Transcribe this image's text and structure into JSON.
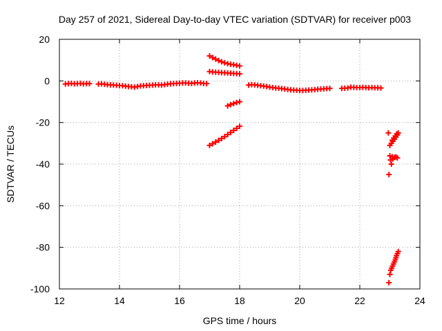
{
  "chart_data": {
    "type": "scatter",
    "title": "Day 257 of 2021, Sidereal Day-to-day VTEC variation (SDTVAR) for receiver p003",
    "xlabel": "GPS time / hours",
    "ylabel": "SDTVAR / TECUs",
    "xlim": [
      12,
      24
    ],
    "ylim": [
      -100,
      20
    ],
    "xticks": [
      12,
      14,
      16,
      18,
      20,
      22,
      24
    ],
    "yticks": [
      -100,
      -80,
      -60,
      -40,
      -20,
      0,
      20
    ],
    "xtick_labels": [
      "12",
      "14",
      "16",
      "18",
      "20",
      "22",
      "24"
    ],
    "ytick_labels": [
      "-100",
      "-80",
      "-60",
      "-40",
      "-20",
      "0",
      "20"
    ],
    "grid": true,
    "legend": "none",
    "marker": "plus",
    "color": "#ff0000",
    "series": [
      {
        "values": [
          [
            12.2,
            -1.5
          ],
          [
            12.3,
            -1.3
          ],
          [
            12.4,
            -1.2
          ],
          [
            12.5,
            -1.4
          ],
          [
            12.6,
            -1.3
          ],
          [
            12.7,
            -1.2
          ],
          [
            12.8,
            -1.4
          ],
          [
            12.9,
            -1.3
          ],
          [
            13.0,
            -1.3
          ],
          [
            13.3,
            -1.5
          ],
          [
            13.4,
            -1.4
          ],
          [
            13.5,
            -1.6
          ],
          [
            13.6,
            -1.8
          ],
          [
            13.7,
            -1.9
          ],
          [
            13.8,
            -2.0
          ],
          [
            13.9,
            -2.1
          ],
          [
            14.0,
            -2.2
          ],
          [
            14.1,
            -2.3
          ],
          [
            14.2,
            -2.5
          ],
          [
            14.3,
            -2.7
          ],
          [
            14.4,
            -2.8
          ],
          [
            14.5,
            -3.0
          ],
          [
            14.6,
            -2.7
          ],
          [
            14.7,
            -2.4
          ],
          [
            14.8,
            -2.3
          ],
          [
            14.9,
            -2.2
          ],
          [
            15.0,
            -2.1
          ],
          [
            15.1,
            -2.0
          ],
          [
            15.2,
            -1.9
          ],
          [
            15.3,
            -1.9
          ],
          [
            15.4,
            -2.0
          ],
          [
            15.5,
            -1.8
          ],
          [
            15.6,
            -1.6
          ],
          [
            15.7,
            -1.4
          ],
          [
            15.8,
            -1.3
          ],
          [
            15.9,
            -1.2
          ],
          [
            16.0,
            -1.1
          ],
          [
            16.1,
            -1.0
          ],
          [
            16.2,
            -1.0
          ],
          [
            16.3,
            -1.1
          ],
          [
            16.4,
            -1.2
          ],
          [
            16.5,
            -1.0
          ],
          [
            16.6,
            -0.9
          ],
          [
            16.7,
            -1.0
          ],
          [
            16.8,
            -1.2
          ],
          [
            16.9,
            -1.3
          ],
          [
            17.0,
            4.5
          ],
          [
            17.1,
            4.3
          ],
          [
            17.2,
            4.2
          ],
          [
            17.3,
            4.1
          ],
          [
            17.4,
            4.0
          ],
          [
            17.5,
            3.9
          ],
          [
            17.6,
            3.8
          ],
          [
            17.7,
            3.7
          ],
          [
            17.8,
            3.6
          ],
          [
            17.9,
            3.5
          ],
          [
            18.0,
            3.4
          ],
          [
            17.0,
            12.0
          ],
          [
            17.1,
            11.2
          ],
          [
            17.2,
            10.5
          ],
          [
            17.3,
            9.8
          ],
          [
            17.4,
            9.2
          ],
          [
            17.5,
            8.7
          ],
          [
            17.6,
            8.3
          ],
          [
            17.7,
            8.0
          ],
          [
            17.8,
            7.8
          ],
          [
            17.9,
            7.5
          ],
          [
            18.0,
            7.2
          ],
          [
            17.0,
            -31.0
          ],
          [
            17.1,
            -30.2
          ],
          [
            17.2,
            -29.4
          ],
          [
            17.3,
            -28.6
          ],
          [
            17.4,
            -27.7
          ],
          [
            17.5,
            -26.8
          ],
          [
            17.6,
            -25.8
          ],
          [
            17.7,
            -24.8
          ],
          [
            17.8,
            -23.8
          ],
          [
            17.9,
            -22.8
          ],
          [
            18.0,
            -21.8
          ],
          [
            17.6,
            -12.0
          ],
          [
            17.7,
            -11.4
          ],
          [
            17.8,
            -10.9
          ],
          [
            17.9,
            -10.4
          ],
          [
            18.0,
            -10.0
          ],
          [
            18.3,
            -2.0
          ],
          [
            18.4,
            -1.8
          ],
          [
            18.5,
            -1.9
          ],
          [
            18.6,
            -2.1
          ],
          [
            18.7,
            -2.3
          ],
          [
            18.8,
            -2.5
          ],
          [
            18.9,
            -2.7
          ],
          [
            19.0,
            -3.0
          ],
          [
            19.1,
            -3.2
          ],
          [
            19.2,
            -3.4
          ],
          [
            19.3,
            -3.5
          ],
          [
            19.4,
            -3.7
          ],
          [
            19.5,
            -3.9
          ],
          [
            19.6,
            -4.1
          ],
          [
            19.7,
            -4.3
          ],
          [
            19.8,
            -4.4
          ],
          [
            19.9,
            -4.5
          ],
          [
            20.0,
            -4.6
          ],
          [
            20.1,
            -4.6
          ],
          [
            20.2,
            -4.5
          ],
          [
            20.3,
            -4.4
          ],
          [
            20.4,
            -4.3
          ],
          [
            20.5,
            -4.2
          ],
          [
            20.6,
            -4.0
          ],
          [
            20.7,
            -3.9
          ],
          [
            20.8,
            -3.8
          ],
          [
            20.9,
            -3.7
          ],
          [
            21.0,
            -3.6
          ],
          [
            21.4,
            -3.6
          ],
          [
            21.5,
            -3.5
          ],
          [
            21.6,
            -3.4
          ],
          [
            21.7,
            -3.0
          ],
          [
            21.8,
            -3.1
          ],
          [
            21.9,
            -3.2
          ],
          [
            22.0,
            -3.2
          ],
          [
            22.1,
            -3.1
          ],
          [
            22.2,
            -3.2
          ],
          [
            22.3,
            -3.3
          ],
          [
            22.4,
            -3.2
          ],
          [
            22.5,
            -3.3
          ],
          [
            22.6,
            -3.3
          ],
          [
            22.7,
            -3.4
          ],
          [
            22.95,
            -25.0
          ],
          [
            22.97,
            -45.0
          ],
          [
            23.0,
            -36.0
          ],
          [
            23.02,
            -38.0
          ],
          [
            23.05,
            -40.0
          ],
          [
            23.08,
            -36.5
          ],
          [
            23.1,
            -37.5
          ],
          [
            23.15,
            -36.8
          ],
          [
            23.2,
            -36.5
          ],
          [
            23.25,
            -37.0
          ],
          [
            23.0,
            -31.0
          ],
          [
            23.05,
            -30.0
          ],
          [
            23.1,
            -29.0
          ],
          [
            23.15,
            -28.0
          ],
          [
            23.2,
            -27.0
          ],
          [
            23.25,
            -26.0
          ],
          [
            23.28,
            -25.0
          ],
          [
            23.08,
            -28.5
          ],
          [
            23.13,
            -27.5
          ],
          [
            23.18,
            -26.5
          ],
          [
            23.23,
            -25.5
          ],
          [
            22.97,
            -97.0
          ],
          [
            23.0,
            -93.0
          ],
          [
            23.03,
            -91.0
          ],
          [
            23.06,
            -90.0
          ],
          [
            23.09,
            -89.0
          ],
          [
            23.12,
            -88.0
          ],
          [
            23.15,
            -87.0
          ],
          [
            23.18,
            -86.0
          ],
          [
            23.2,
            -85.0
          ],
          [
            23.22,
            -84.0
          ],
          [
            23.25,
            -83.0
          ],
          [
            23.28,
            -82.0
          ]
        ]
      }
    ]
  }
}
